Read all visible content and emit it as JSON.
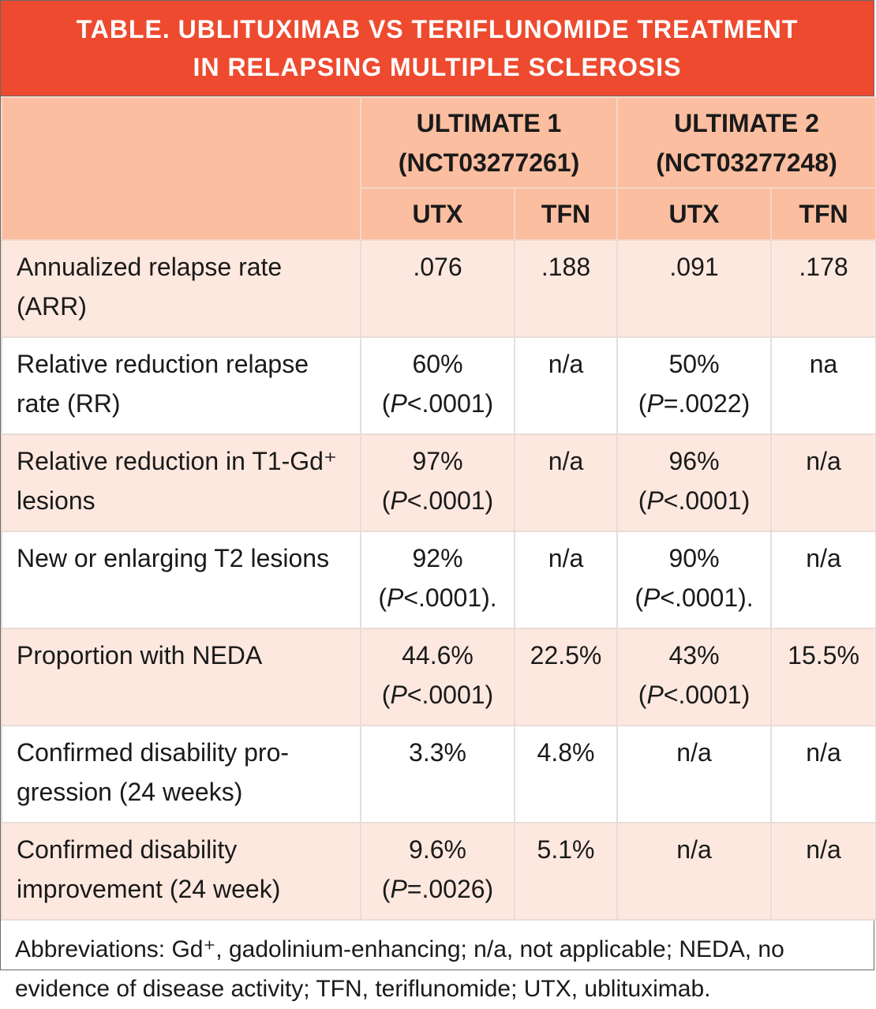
{
  "title": {
    "line1": "TABLE. UBLITUXIMAB VS TERIFLUNOMIDE TREATMENT",
    "line2": "IN RELAPSING MULTIPLE SCLEROSIS"
  },
  "header": {
    "trial1_name": "ULTIMATE 1",
    "trial1_id": "(NCT03277261)",
    "trial2_name": "ULTIMATE 2",
    "trial2_id": "(NCT03277248)",
    "col_utx": "UTX",
    "col_tfn": "TFN"
  },
  "rows": [
    {
      "label": "Annualized relapse rate (ARR)",
      "u1": ".076",
      "u1p": "",
      "t1": ".188",
      "u2": ".091",
      "u2p": "",
      "t2": ".178"
    },
    {
      "label": "Relative reduction relapse rate (RR)",
      "u1": "60%",
      "u1p": "(P<.0001)",
      "t1": "n/a",
      "u2": "50%",
      "u2p": "(P=.0022)",
      "t2": "na"
    },
    {
      "label": "Relative reduction in T1-Gd⁺ lesions",
      "u1": "97%",
      "u1p": "(P<.0001)",
      "t1": "n/a",
      "u2": "96%",
      "u2p": "(P<.0001)",
      "t2": "n/a"
    },
    {
      "label": "New or enlarging T2 lesions",
      "u1": "92%",
      "u1p": "(P<.0001).",
      "t1": "n/a",
      "u2": "90%",
      "u2p": "(P<.0001).",
      "t2": "n/a"
    },
    {
      "label": "Proportion with NEDA",
      "u1": "44.6%",
      "u1p": "(P<.0001)",
      "t1": "22.5%",
      "u2": "43%",
      "u2p": "(P<.0001)",
      "t2": "15.5%"
    },
    {
      "label": "Confirmed disability pro-gression (24 weeks)",
      "u1": "3.3%",
      "u1p": "",
      "t1": "4.8%",
      "u2": "n/a",
      "u2p": "",
      "t2": "n/a"
    },
    {
      "label": "Confirmed disability improvement (24 week)",
      "u1": "9.6%",
      "u1p": "(P=.0026)",
      "t1": "5.1%",
      "u2": "n/a",
      "u2p": "",
      "t2": "n/a"
    }
  ],
  "footnote": "Abbreviations: Gd⁺, gadolinium-enhancing; n/a, not applicable; NEDA, no evidence of disease activity; TFN, teriflunomide; UTX, ublituximab."
}
